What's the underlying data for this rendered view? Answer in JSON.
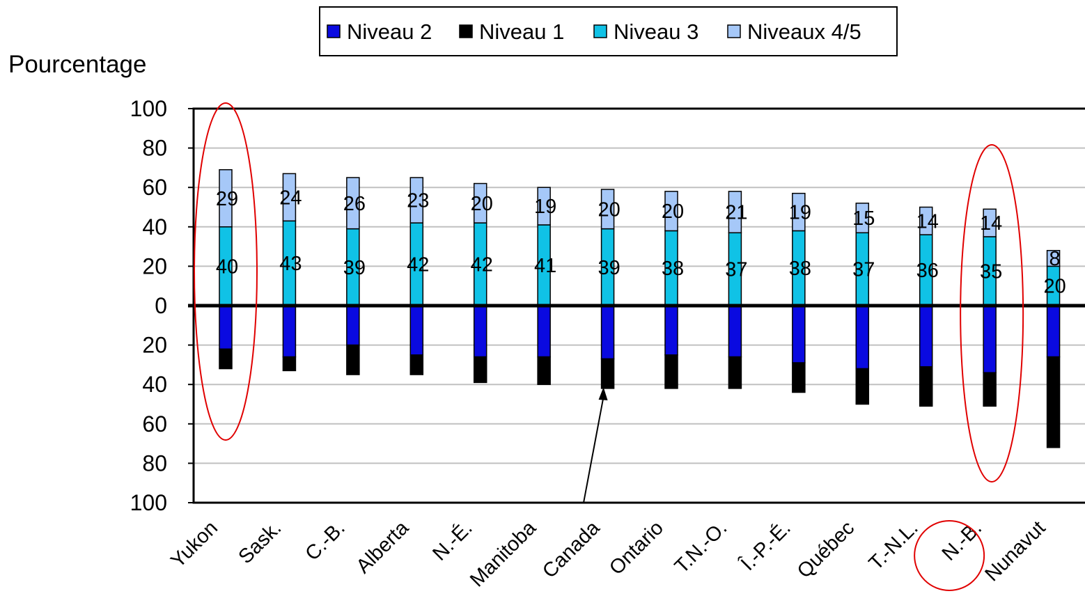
{
  "chart_data": {
    "type": "bar",
    "ylabel": "Pourcentage",
    "y_ticks": [
      "100",
      "80",
      "60",
      "40",
      "20",
      "0",
      "20",
      "40",
      "60",
      "80",
      "100"
    ],
    "ylim": [
      -100,
      100
    ],
    "grid": true,
    "legend_position": "top",
    "categories": [
      "Yukon",
      "Sask.",
      "C.-B.",
      "Alberta",
      "N.-É.",
      "Manitoba",
      "Canada",
      "Ontario",
      "T.N.-O.",
      "Î.-P.-É.",
      "Québec",
      "T.-N.L.",
      "N.-B.",
      "Nunavut"
    ],
    "series": [
      {
        "name": "Niveau 2",
        "color": "#0a0ae0",
        "direction": "below",
        "values": [
          22,
          26,
          20,
          25,
          26,
          26,
          27,
          25,
          26,
          29,
          32,
          31,
          34,
          26
        ]
      },
      {
        "name": "Niveau 1",
        "color": "#000000",
        "direction": "below",
        "values": [
          10,
          7,
          15,
          10,
          13,
          14,
          15,
          17,
          16,
          15,
          18,
          20,
          17,
          46
        ]
      },
      {
        "name": "Niveau 3",
        "color": "#10c2e6",
        "direction": "above",
        "labeled": true,
        "values": [
          40,
          43,
          39,
          42,
          42,
          41,
          39,
          38,
          37,
          38,
          37,
          36,
          35,
          20
        ]
      },
      {
        "name": "Niveaux 4/5",
        "color": "#a6c8f8",
        "direction": "above",
        "labeled": true,
        "values": [
          29,
          24,
          26,
          23,
          20,
          19,
          20,
          20,
          21,
          19,
          15,
          14,
          14,
          8
        ]
      }
    ],
    "annotations": {
      "ellipses": [
        "Yukon",
        "N.-B."
      ],
      "circle": "N.-B.",
      "arrow_to": "Canada"
    }
  }
}
